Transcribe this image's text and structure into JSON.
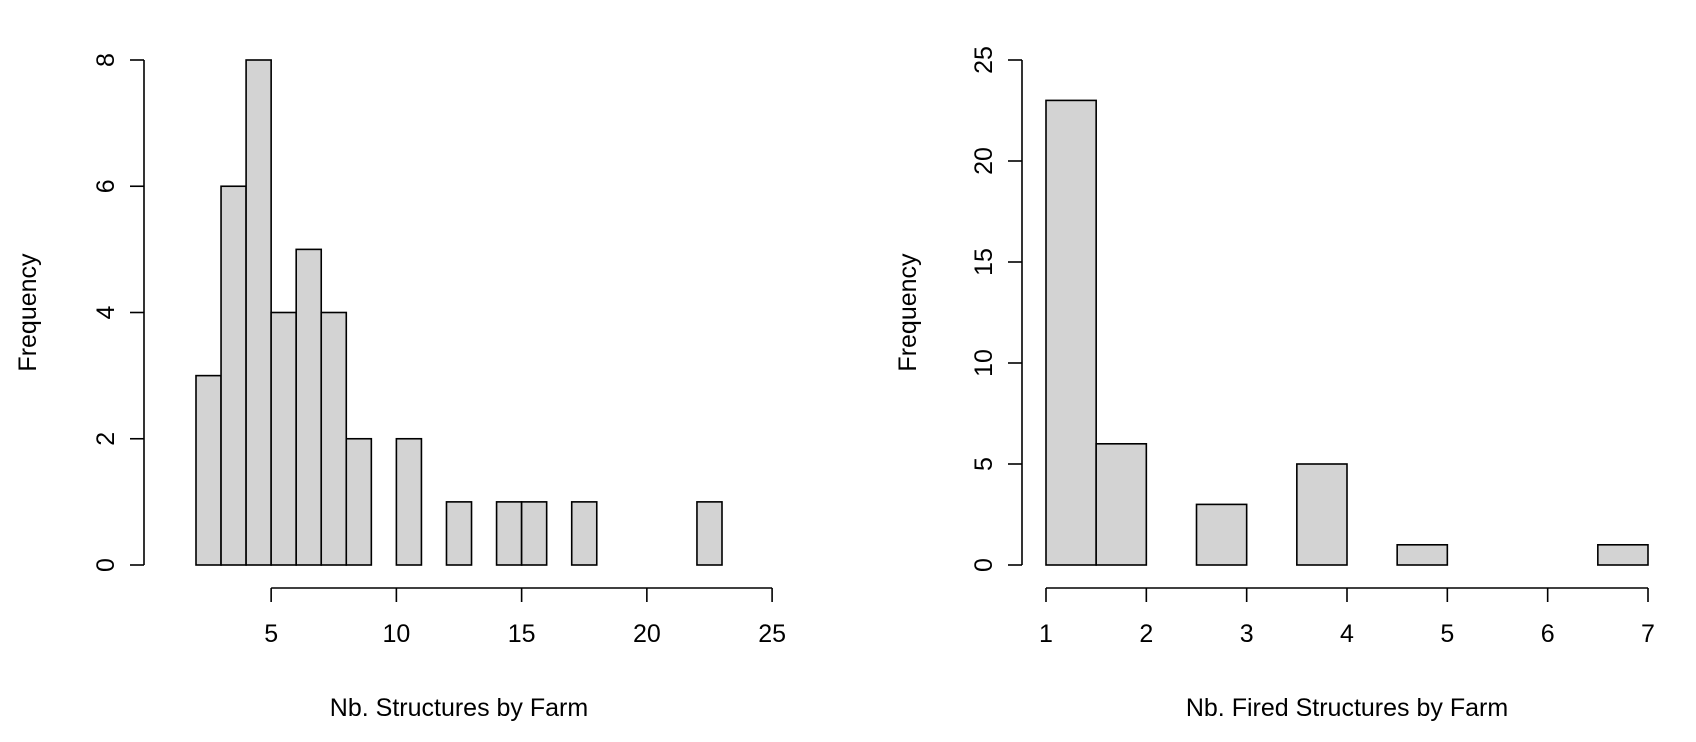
{
  "chart_data": [
    {
      "type": "bar",
      "subtype": "histogram",
      "title": "",
      "xlabel": "Nb. Structures by Farm",
      "ylabel": "Frequency",
      "bins": [
        {
          "x0": 2,
          "x1": 3,
          "count": 3
        },
        {
          "x0": 3,
          "x1": 4,
          "count": 6
        },
        {
          "x0": 4,
          "x1": 5,
          "count": 8
        },
        {
          "x0": 5,
          "x1": 6,
          "count": 4
        },
        {
          "x0": 6,
          "x1": 7,
          "count": 5
        },
        {
          "x0": 7,
          "x1": 8,
          "count": 4
        },
        {
          "x0": 8,
          "x1": 9,
          "count": 2
        },
        {
          "x0": 10,
          "x1": 11,
          "count": 2
        },
        {
          "x0": 12,
          "x1": 13,
          "count": 1
        },
        {
          "x0": 14,
          "x1": 15,
          "count": 1
        },
        {
          "x0": 15,
          "x1": 16,
          "count": 1
        },
        {
          "x0": 17,
          "x1": 18,
          "count": 1
        },
        {
          "x0": 22,
          "x1": 23,
          "count": 1
        }
      ],
      "xlim": [
        2,
        23
      ],
      "ylim": [
        0,
        8
      ],
      "xaxis_range": [
        5,
        25
      ],
      "xticks": [
        5,
        10,
        15,
        20,
        25
      ],
      "yticks": [
        0,
        2,
        4,
        6,
        8
      ],
      "bar_fill": "#d3d3d3",
      "grid": false,
      "legend": "none"
    },
    {
      "type": "bar",
      "subtype": "histogram",
      "title": "",
      "xlabel": "Nb. Fired Structures by Farm",
      "ylabel": "Frequency",
      "bins": [
        {
          "x0": 1,
          "x1": 1.5,
          "count": 23
        },
        {
          "x0": 1.5,
          "x1": 2,
          "count": 6
        },
        {
          "x0": 2.5,
          "x1": 3,
          "count": 3
        },
        {
          "x0": 3.5,
          "x1": 4,
          "count": 5
        },
        {
          "x0": 4.5,
          "x1": 5,
          "count": 1
        },
        {
          "x0": 6.5,
          "x1": 7,
          "count": 1
        }
      ],
      "xlim": [
        1,
        7
      ],
      "ylim": [
        0,
        25
      ],
      "xaxis_range": [
        1,
        7
      ],
      "xticks": [
        1,
        2,
        3,
        4,
        5,
        6,
        7
      ],
      "yticks": [
        0,
        5,
        10,
        15,
        20,
        25
      ],
      "bar_fill": "#d3d3d3",
      "grid": false,
      "legend": "none"
    }
  ]
}
